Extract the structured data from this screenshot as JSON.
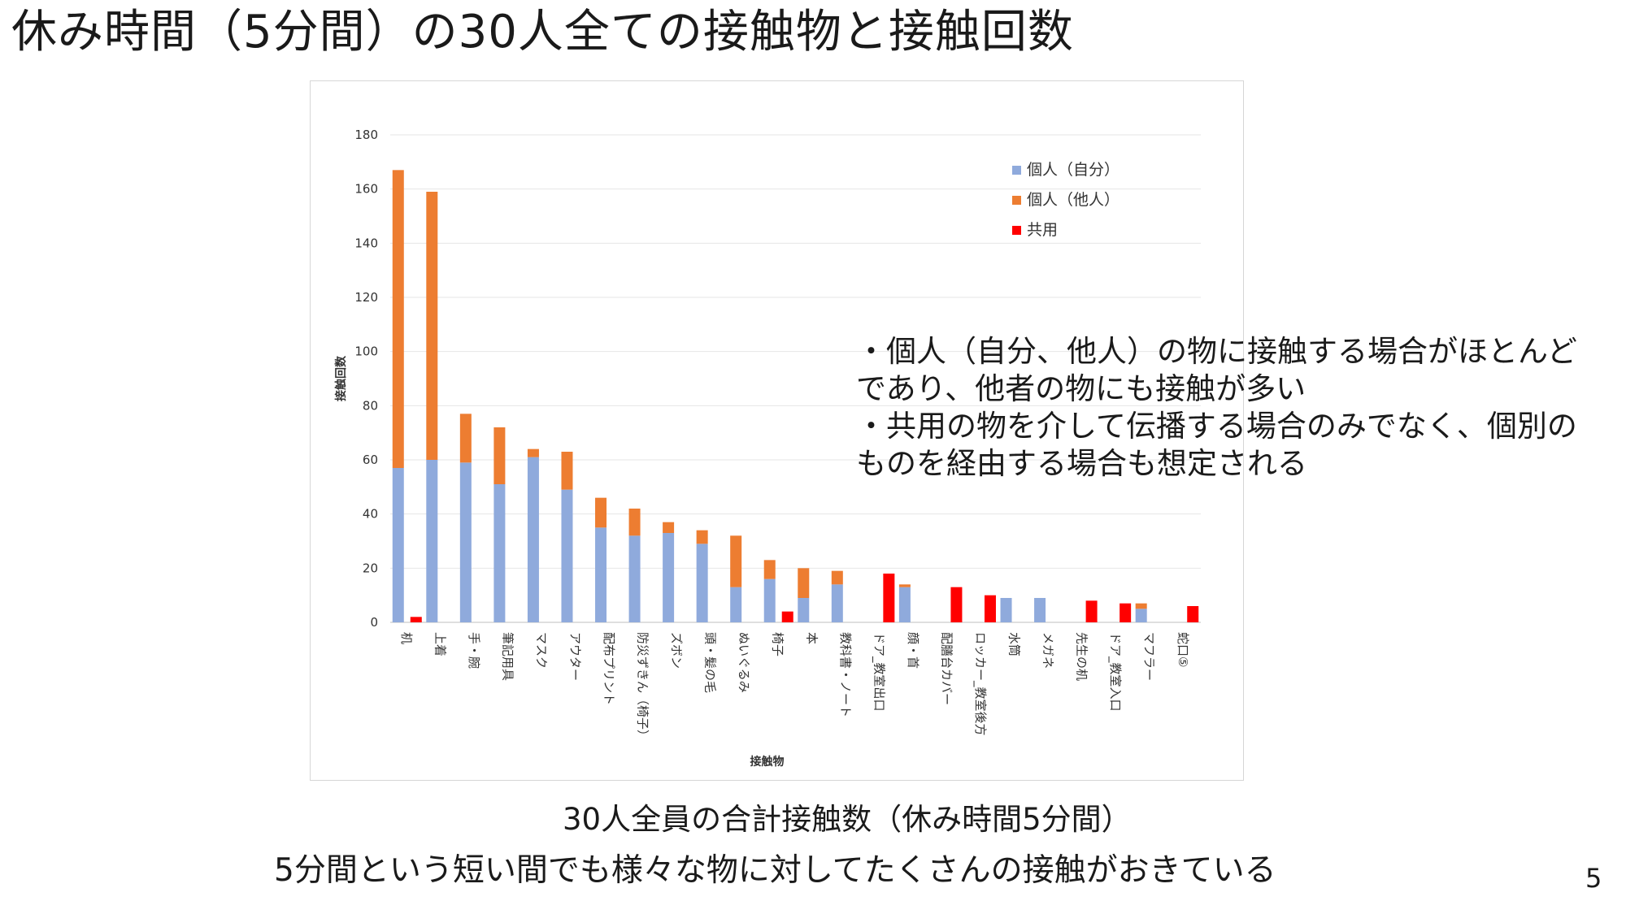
{
  "slide": {
    "title": "休み時間（5分間）の30人全ての接触物と接触回数",
    "notes": [
      "・個人（自分、他人）の物に接触する場合がほとんど",
      "であり、他者の物にも接触が多い",
      "・共用の物を介して伝播する場合のみでなく、個別の",
      "ものを経由する場合も想定される"
    ],
    "caption": "30人全員の合計接触数（休み時間5分間）",
    "subcaption": "5分間という短い間でも様々な物に対してたくさんの接触がおきている",
    "page_number": "5"
  },
  "chart_data": {
    "type": "bar",
    "stacked": true,
    "ylabel": "接触回数",
    "xlabel": "接触物",
    "ylim": [
      0,
      180
    ],
    "yticks": [
      0,
      20,
      40,
      60,
      80,
      100,
      120,
      140,
      160,
      180
    ],
    "grid": true,
    "legend_position": "top-right",
    "categories": [
      "机",
      "上着",
      "手・腕",
      "筆記用具",
      "マスク",
      "アウター",
      "配布プリント",
      "防災ずきん（椅子）",
      "ズボン",
      "頭・髪の毛",
      "ぬいぐるみ",
      "椅子",
      "本",
      "教科書・ノート",
      "ドア_教室出口",
      "顔・首",
      "配膳台カバー",
      "ロッカー_教室後方",
      "水筒",
      "メガネ",
      "先生の机",
      "ドア_教室入口",
      "マフラー",
      "蛇口⑤"
    ],
    "series": [
      {
        "name": "個人（自分）",
        "color": "#8faadc",
        "values": [
          57,
          60,
          59,
          51,
          61,
          49,
          35,
          32,
          33,
          29,
          13,
          16,
          9,
          14,
          0,
          13,
          0,
          0,
          9,
          9,
          0,
          0,
          5,
          0
        ]
      },
      {
        "name": "個人（他人）",
        "color": "#ed7d31",
        "values": [
          110,
          99,
          18,
          21,
          3,
          14,
          11,
          10,
          4,
          5,
          19,
          7,
          11,
          5,
          0,
          1,
          0,
          0,
          0,
          0,
          0,
          0,
          2,
          0
        ]
      },
      {
        "name": "共用",
        "color": "#ff0000",
        "values": [
          2,
          0,
          0,
          0,
          0,
          0,
          0,
          0,
          0,
          0,
          0,
          4,
          0,
          0,
          18,
          0,
          13,
          10,
          0,
          0,
          8,
          7,
          0,
          6
        ]
      }
    ]
  }
}
